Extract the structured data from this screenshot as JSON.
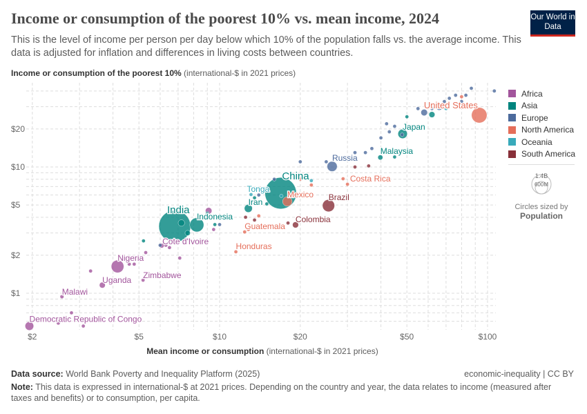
{
  "header": {
    "title": "Income or consumption of the poorest 10% vs. mean income, 2024",
    "subtitle": "This is the level of income per person per day below which 10% of the population falls vs. the average income. This data is adjusted for inflation and differences in living costs between countries.",
    "logo": "Our World in Data"
  },
  "axis": {
    "y_bold": "Income or consumption of the poorest 10%",
    "y_unit": "(international-$ in 2021 prices)",
    "x_bold": "Mean income or consumption",
    "x_unit": "(international-$ in 2021 prices)"
  },
  "legend": {
    "items": [
      {
        "label": "Africa",
        "color": "#a2559c"
      },
      {
        "label": "Asia",
        "color": "#00847e"
      },
      {
        "label": "Europe",
        "color": "#4c6a9c"
      },
      {
        "label": "North America",
        "color": "#e56e5a"
      },
      {
        "label": "Oceania",
        "color": "#38aaba"
      },
      {
        "label": "South America",
        "color": "#883039"
      }
    ],
    "size_big": "1.4B",
    "size_small": "600M",
    "size_caption": "Circles sized by",
    "size_var": "Population"
  },
  "footer": {
    "source_label": "Data source:",
    "source": "World Bank Poverty and Inequality Platform (2025)",
    "license": "economic-inequality | CC BY",
    "note_label": "Note:",
    "note": "This data is expressed in international-$ at 2021 prices. Depending on the country and year, the data relates to income (measured after taxes and benefits) or to consumption, per capita."
  },
  "chart_data": {
    "type": "scatter",
    "x_scale": "log",
    "y_scale": "log",
    "xlim": [
      1.9,
      110
    ],
    "ylim": [
      0.5,
      45
    ],
    "grid": true,
    "legend_placement": "right",
    "x_ticks": [
      {
        "v": 2,
        "label": "$2"
      },
      {
        "v": 5,
        "label": "$5"
      },
      {
        "v": 10,
        "label": "$10"
      },
      {
        "v": 20,
        "label": "$20"
      },
      {
        "v": 50,
        "label": "$50"
      },
      {
        "v": 100,
        "label": "$100"
      }
    ],
    "y_ticks": [
      {
        "v": 1,
        "label": "$1"
      },
      {
        "v": 2,
        "label": "$2"
      },
      {
        "v": 5,
        "label": "$5"
      },
      {
        "v": 10,
        "label": "$10"
      },
      {
        "v": 20,
        "label": "$20"
      }
    ],
    "points": [
      {
        "label": "Democratic Republic of Congo",
        "region": "Africa",
        "x": 1.95,
        "y": 0.55,
        "pop": 105
      },
      {
        "label": "Malawi",
        "region": "Africa",
        "x": 2.58,
        "y": 0.94,
        "pop": 21
      },
      {
        "label": "Uganda",
        "region": "Africa",
        "x": 3.65,
        "y": 1.16,
        "pop": 49
      },
      {
        "label": "Nigeria",
        "region": "Africa",
        "x": 4.16,
        "y": 1.63,
        "pop": 225
      },
      {
        "label": "Zimbabwe",
        "region": "Africa",
        "x": 5.18,
        "y": 1.27,
        "pop": 16
      },
      {
        "label": "Cote d'Ivoire",
        "region": "Africa",
        "x": 6.08,
        "y": 2.38,
        "pop": 30
      },
      {
        "label": "India",
        "region": "Asia",
        "x": 6.8,
        "y": 3.39,
        "pop": 1440
      },
      {
        "label": "Indonesia",
        "region": "Asia",
        "x": 8.22,
        "y": 3.48,
        "pop": 280
      },
      {
        "label": "Honduras",
        "region": "North America",
        "x": 11.5,
        "y": 2.13,
        "pop": 10
      },
      {
        "label": "Guatemala",
        "region": "North America",
        "x": 12.4,
        "y": 3.06,
        "pop": 18
      },
      {
        "label": "Iran",
        "region": "Asia",
        "x": 12.8,
        "y": 4.7,
        "pop": 90
      },
      {
        "label": "Tonga",
        "region": "Oceania",
        "x": 13.1,
        "y": 6.05,
        "pop": 1
      },
      {
        "label": "China",
        "region": "Asia",
        "x": 16.9,
        "y": 6.2,
        "pop": 1410
      },
      {
        "label": "Mexico",
        "region": "North America",
        "x": 17.9,
        "y": 5.33,
        "pop": 130
      },
      {
        "label": "Colombia",
        "region": "South America",
        "x": 19.2,
        "y": 3.48,
        "pop": 52
      },
      {
        "label": "Brazil",
        "region": "South America",
        "x": 25.5,
        "y": 4.94,
        "pop": 210
      },
      {
        "label": "Russia",
        "region": "Europe",
        "x": 26.3,
        "y": 10.1,
        "pop": 145
      },
      {
        "label": "Costa Rica",
        "region": "North America",
        "x": 28.9,
        "y": 8.07,
        "pop": 5
      },
      {
        "label": "Malaysia",
        "region": "Asia",
        "x": 39.8,
        "y": 11.9,
        "pop": 35
      },
      {
        "label": "Japan",
        "region": "Asia",
        "x": 48.2,
        "y": 18.3,
        "pop": 124
      },
      {
        "label": "United States",
        "region": "North America",
        "x": 93.1,
        "y": 25.7,
        "pop": 340
      },
      {
        "region": "Europe",
        "x": 106,
        "y": 40
      },
      {
        "region": "Europe",
        "x": 87,
        "y": 42
      },
      {
        "region": "Europe",
        "x": 76,
        "y": 37
      },
      {
        "region": "Europe",
        "x": 80,
        "y": 33
      },
      {
        "region": "Europe",
        "x": 72,
        "y": 35
      },
      {
        "region": "Europe",
        "x": 69,
        "y": 33
      },
      {
        "region": "Europe",
        "x": 62,
        "y": 29
      },
      {
        "region": "Europe",
        "x": 55,
        "y": 29
      },
      {
        "region": "Europe",
        "x": 58,
        "y": 27,
        "pop": 60
      },
      {
        "region": "Europe",
        "x": 52,
        "y": 20
      },
      {
        "region": "Europe",
        "x": 48,
        "y": 18
      },
      {
        "region": "Europe",
        "x": 45,
        "y": 21
      },
      {
        "region": "Europe",
        "x": 43,
        "y": 19
      },
      {
        "region": "Europe",
        "x": 40,
        "y": 17
      },
      {
        "region": "Europe",
        "x": 37,
        "y": 14
      },
      {
        "region": "Europe",
        "x": 35,
        "y": 13
      },
      {
        "region": "Europe",
        "x": 42,
        "y": 22
      },
      {
        "region": "Europe",
        "x": 25,
        "y": 11
      },
      {
        "region": "Europe",
        "x": 20,
        "y": 11
      },
      {
        "region": "Europe",
        "x": 16,
        "y": 8
      },
      {
        "region": "Europe",
        "x": 14,
        "y": 6
      },
      {
        "region": "Europe",
        "x": 10,
        "y": 3.5
      },
      {
        "region": "Europe",
        "x": 6.0,
        "y": 2.4
      },
      {
        "region": "Europe",
        "x": 32,
        "y": 13
      },
      {
        "region": "Europe",
        "x": 66,
        "y": 30,
        "pop": 70
      },
      {
        "region": "Europe",
        "x": 83,
        "y": 37
      },
      {
        "region": "Asia",
        "x": 5.2,
        "y": 2.6
      },
      {
        "region": "Asia",
        "x": 7.2,
        "y": 3.6,
        "pop": 60
      },
      {
        "region": "Asia",
        "x": 7.6,
        "y": 3.0,
        "pop": 40
      },
      {
        "region": "Asia",
        "x": 9.6,
        "y": 3.5
      },
      {
        "region": "Asia",
        "x": 9.0,
        "y": 4.3
      },
      {
        "region": "Asia",
        "x": 13.5,
        "y": 5.7
      },
      {
        "region": "Asia",
        "x": 15,
        "y": 5.1
      },
      {
        "region": "Asia",
        "x": 50,
        "y": 25
      },
      {
        "region": "Asia",
        "x": 62,
        "y": 26,
        "pop": 50
      },
      {
        "region": "Asia",
        "x": 45,
        "y": 12
      },
      {
        "region": "Africa",
        "x": 2.5,
        "y": 0.58
      },
      {
        "region": "Africa",
        "x": 2.8,
        "y": 0.7
      },
      {
        "region": "Africa",
        "x": 3.1,
        "y": 0.55
      },
      {
        "region": "Africa",
        "x": 3.3,
        "y": 1.5
      },
      {
        "region": "Africa",
        "x": 4.6,
        "y": 1.7
      },
      {
        "region": "Africa",
        "x": 4.8,
        "y": 1.7
      },
      {
        "region": "Africa",
        "x": 5.3,
        "y": 2.1
      },
      {
        "region": "Africa",
        "x": 6.5,
        "y": 2.3
      },
      {
        "region": "Africa",
        "x": 7.1,
        "y": 1.9
      },
      {
        "region": "Africa",
        "x": 9.1,
        "y": 4.5,
        "pop": 60
      },
      {
        "region": "Africa",
        "x": 9.5,
        "y": 3.2
      },
      {
        "region": "Africa",
        "x": 6.3,
        "y": 2.4
      },
      {
        "region": "South America",
        "x": 12.5,
        "y": 4.0
      },
      {
        "region": "South America",
        "x": 13.5,
        "y": 3.8
      },
      {
        "region": "South America",
        "x": 32,
        "y": 10
      },
      {
        "region": "South America",
        "x": 36,
        "y": 10.2
      },
      {
        "region": "South America",
        "x": 18,
        "y": 3.6
      },
      {
        "region": "North America",
        "x": 12.8,
        "y": 3.2
      },
      {
        "region": "North America",
        "x": 14,
        "y": 4.1
      },
      {
        "region": "North America",
        "x": 22,
        "y": 7.2
      },
      {
        "region": "North America",
        "x": 20,
        "y": 8.0
      },
      {
        "region": "North America",
        "x": 80,
        "y": 36
      },
      {
        "region": "North America",
        "x": 30,
        "y": 7.3
      },
      {
        "region": "Oceania",
        "x": 70,
        "y": 29
      },
      {
        "region": "Oceania",
        "x": 17,
        "y": 5.9
      },
      {
        "region": "Oceania",
        "x": 22,
        "y": 7.8
      }
    ]
  }
}
